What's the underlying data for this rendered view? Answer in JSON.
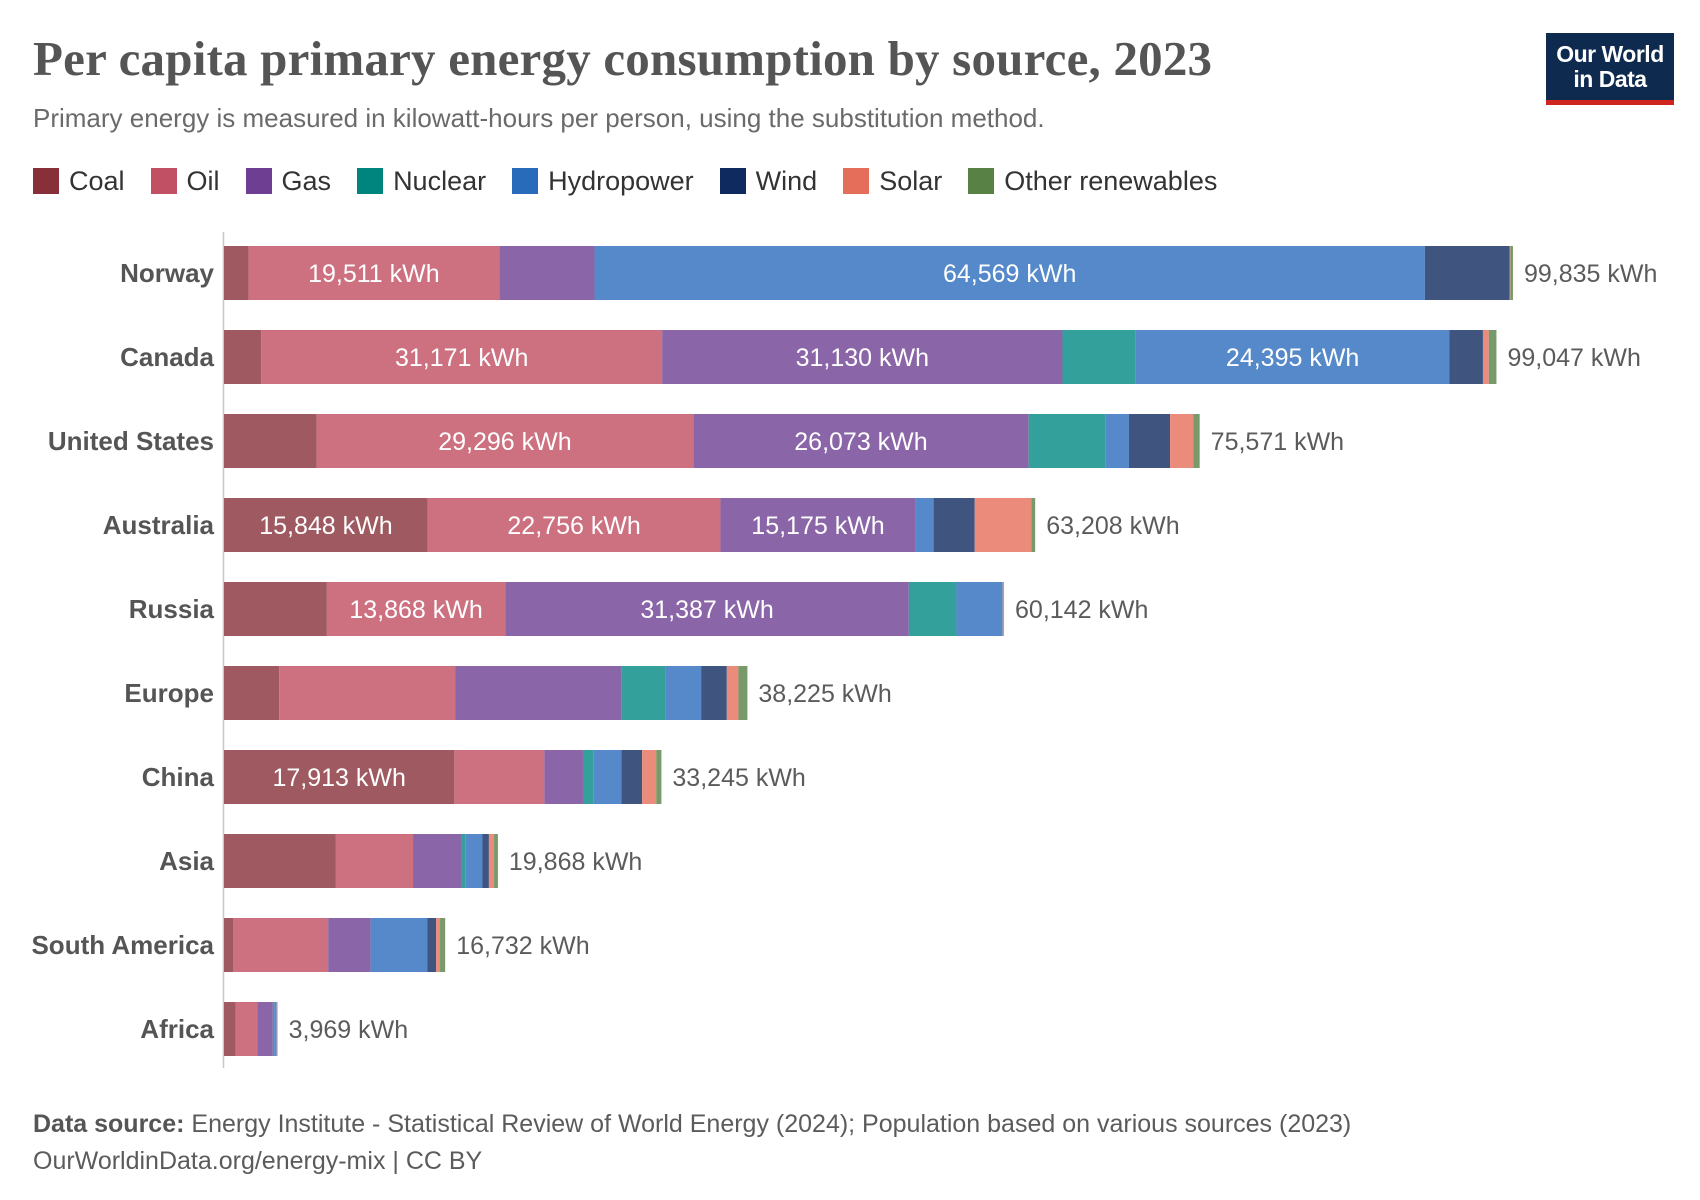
{
  "header": {
    "title": "Per capita primary energy consumption by source, 2023",
    "subtitle": "Primary energy is measured in kilowatt-hours per person, using the substitution method.",
    "logo_line1": "Our World",
    "logo_line2": "in Data"
  },
  "legend": [
    {
      "name": "Coal",
      "color": "#883039"
    },
    {
      "name": "Oil",
      "color": "#c15065"
    },
    {
      "name": "Gas",
      "color": "#6d3e91"
    },
    {
      "name": "Nuclear",
      "color": "#00847e"
    },
    {
      "name": "Hydropower",
      "color": "#286bbb"
    },
    {
      "name": "Wind",
      "color": "#0f2a5f"
    },
    {
      "name": "Solar",
      "color": "#e56e5a"
    },
    {
      "name": "Other renewables",
      "color": "#578145"
    }
  ],
  "chart_data": {
    "type": "bar",
    "orientation": "horizontal",
    "stacked": true,
    "unit": "kWh",
    "categories": [
      "Norway",
      "Canada",
      "United States",
      "Australia",
      "Russia",
      "Europe",
      "China",
      "Asia",
      "South America",
      "Africa"
    ],
    "series": [
      {
        "name": "Coal",
        "color": "#9e5a60",
        "values": [
          1900,
          2900,
          7200,
          15848,
          8000,
          4300,
          17913,
          8700,
          700,
          900
        ]
      },
      {
        "name": "Oil",
        "color": "#cd7080",
        "values": [
          19511,
          31171,
          29296,
          22756,
          13868,
          13700,
          7000,
          6000,
          7400,
          1700
        ]
      },
      {
        "name": "Gas",
        "color": "#8a65a7",
        "values": [
          7400,
          31130,
          26073,
          15175,
          31387,
          12900,
          3000,
          3800,
          3300,
          1200
        ]
      },
      {
        "name": "Nuclear",
        "color": "#33a09b",
        "values": [
          0,
          5700,
          6000,
          0,
          3700,
          3400,
          800,
          300,
          0,
          100
        ]
      },
      {
        "name": "Hydropower",
        "color": "#5589c9",
        "values": [
          64569,
          24395,
          1800,
          1400,
          3600,
          2800,
          2200,
          1300,
          4400,
          200
        ]
      },
      {
        "name": "Wind",
        "color": "#3f5580",
        "values": [
          6600,
          2600,
          3200,
          3200,
          0,
          2000,
          1600,
          500,
          700,
          0
        ]
      },
      {
        "name": "Solar",
        "color": "#ea8b7b",
        "values": [
          50,
          450,
          1800,
          4400,
          70,
          900,
          1100,
          400,
          300,
          50
        ]
      },
      {
        "name": "Other renewables",
        "color": "#78996a",
        "values": [
          200,
          600,
          500,
          300,
          30,
          700,
          400,
          300,
          400,
          20
        ]
      }
    ],
    "totals": [
      "99,835 kWh",
      "99,047 kWh",
      "75,571 kWh",
      "63,208 kWh",
      "60,142 kWh",
      "38,225 kWh",
      "33,245 kWh",
      "19,868 kWh",
      "16,732 kWh",
      "3,969 kWh"
    ],
    "segment_labels": [
      {
        "row": 0,
        "series": 1,
        "text": "19,511 kWh"
      },
      {
        "row": 0,
        "series": 4,
        "text": "64,569 kWh"
      },
      {
        "row": 1,
        "series": 1,
        "text": "31,171 kWh"
      },
      {
        "row": 1,
        "series": 2,
        "text": "31,130 kWh"
      },
      {
        "row": 1,
        "series": 4,
        "text": "24,395 kWh"
      },
      {
        "row": 2,
        "series": 1,
        "text": "29,296 kWh"
      },
      {
        "row": 2,
        "series": 2,
        "text": "26,073 kWh"
      },
      {
        "row": 3,
        "series": 0,
        "text": "15,848 kWh"
      },
      {
        "row": 3,
        "series": 1,
        "text": "22,756 kWh"
      },
      {
        "row": 3,
        "series": 2,
        "text": "15,175 kWh"
      },
      {
        "row": 4,
        "series": 1,
        "text": "13,868 kWh"
      },
      {
        "row": 4,
        "series": 2,
        "text": "31,387 kWh"
      },
      {
        "row": 6,
        "series": 0,
        "text": "17,913 kWh"
      }
    ],
    "xlim": [
      0,
      100000
    ],
    "grid": false,
    "legend_position": "top-left"
  },
  "footer": {
    "source_label": "Data source:",
    "source_text": "Energy Institute - Statistical Review of World Energy (2024); Population based on various sources (2023)",
    "url_license": "OurWorldinData.org/energy-mix | CC BY"
  }
}
